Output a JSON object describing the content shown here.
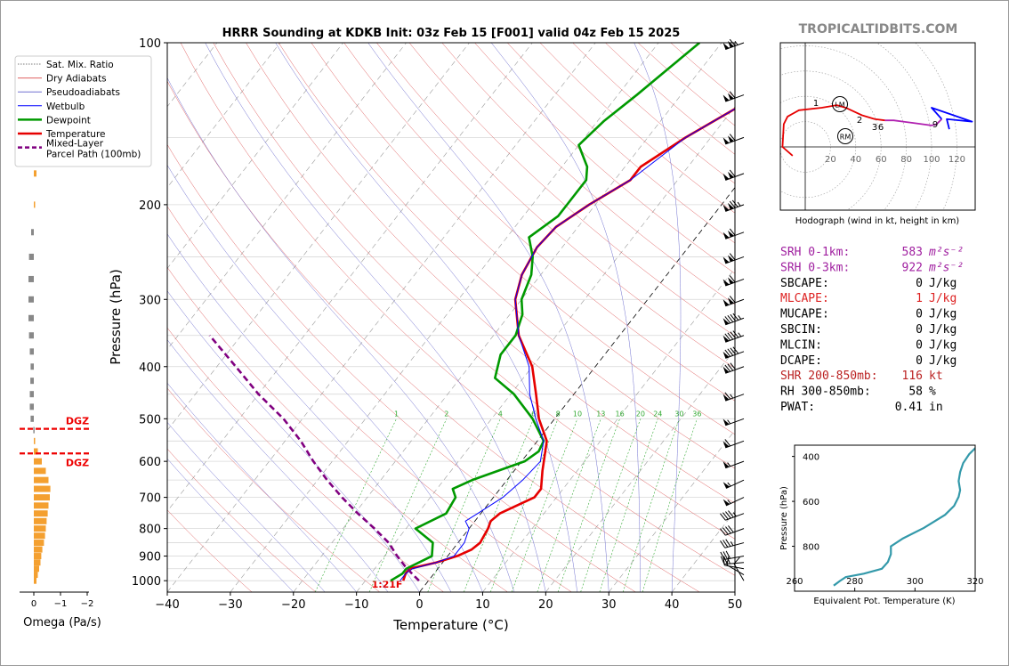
{
  "title": "HRRR Sounding at KDKB Init: 03z Feb 15 [F001] valid 04z Feb 15 2025",
  "watermark": "TROPICALTIDBITS.COM",
  "colors": {
    "temperature": "#e60000",
    "dewpoint": "#009900",
    "wetbulb": "#0000ff",
    "parcel": "#800080",
    "dry_adiabat": "#e06060",
    "moist_adiabat": "#7070d0",
    "mixing_ratio": "#33aa33",
    "isotherm": "#777777",
    "omega_neg": "#f4a030",
    "omega_pos": "#888888",
    "theta_e": "#3399aa",
    "srh": "#a020a0",
    "highlight": "#dd2222"
  },
  "chart_data": [
    {
      "type": "line",
      "name": "skew-t",
      "xlabel": "Temperature (°C)",
      "ylabel": "Pressure (hPa)",
      "xlim": [
        -40,
        50
      ],
      "ylim": [
        1050,
        100
      ],
      "y_scale": "log",
      "x_ticks": [
        -40,
        -30,
        -20,
        -10,
        0,
        10,
        20,
        30,
        40,
        50
      ],
      "y_ticks": [
        100,
        200,
        300,
        400,
        500,
        600,
        700,
        800,
        900,
        1000
      ],
      "mixing_ratio_labels": [
        "1",
        "2",
        "4",
        "6",
        "8",
        "10",
        "13",
        "16",
        "20",
        "24",
        "30",
        "36"
      ],
      "surface_label": "1:21F",
      "legend": {
        "position": "top-left",
        "items": [
          "Sat. Mix. Ratio",
          "Dry Adiabats",
          "Pseudoadiabats",
          "Wetbulb",
          "Dewpoint",
          "Temperature",
          "Mixed-Layer\nParcel Path (100mb)"
        ]
      },
      "series": [
        {
          "name": "Temperature",
          "points": [
            [
              -4.0,
              1000
            ],
            [
              -4.5,
              970
            ],
            [
              -4.5,
              950
            ],
            [
              -1.0,
              925
            ],
            [
              1.5,
              900
            ],
            [
              3.0,
              875
            ],
            [
              3.5,
              850
            ],
            [
              3.0,
              800
            ],
            [
              2.5,
              775
            ],
            [
              3.0,
              750
            ],
            [
              6.5,
              700
            ],
            [
              6.5,
              675
            ],
            [
              4.5,
              625
            ],
            [
              1.5,
              550
            ],
            [
              -2.5,
              500
            ],
            [
              -6.0,
              450
            ],
            [
              -10.0,
              400
            ],
            [
              -16.0,
              350
            ],
            [
              -21.0,
              300
            ],
            [
              -23.0,
              270
            ],
            [
              -24.0,
              240
            ],
            [
              -23.5,
              220
            ],
            [
              -21.0,
              200
            ],
            [
              -17.5,
              180
            ],
            [
              -17.5,
              170
            ],
            [
              -14.0,
              150
            ],
            [
              -9.0,
              130
            ],
            [
              -5.0,
              115
            ],
            [
              -2.0,
              100
            ]
          ]
        },
        {
          "name": "Dewpoint",
          "points": [
            [
              -6.0,
              1000
            ],
            [
              -5.0,
              970
            ],
            [
              -5.0,
              950
            ],
            [
              -2.5,
              900
            ],
            [
              -4.0,
              850
            ],
            [
              -8.5,
              800
            ],
            [
              -5.5,
              750
            ],
            [
              -6.0,
              700
            ],
            [
              -7.5,
              675
            ],
            [
              -5.5,
              650
            ],
            [
              0.5,
              600
            ],
            [
              1.5,
              575
            ],
            [
              1.0,
              550
            ],
            [
              -3.5,
              500
            ],
            [
              -9.5,
              450
            ],
            [
              -14.5,
              420
            ],
            [
              -16.5,
              380
            ],
            [
              -16.5,
              350
            ],
            [
              -18.0,
              320
            ],
            [
              -20.0,
              300
            ],
            [
              -21.5,
              270
            ],
            [
              -23.5,
              250
            ],
            [
              -26.5,
              230
            ],
            [
              -24.5,
              210
            ],
            [
              -24.5,
              200
            ],
            [
              -24.5,
              180
            ],
            [
              -26.0,
              170
            ],
            [
              -30.0,
              155
            ],
            [
              -29.0,
              140
            ],
            [
              -27.0,
              125
            ],
            [
              -25.0,
              110
            ],
            [
              -23.5,
              100
            ]
          ]
        },
        {
          "name": "Wetbulb",
          "points": [
            [
              -4.5,
              1000
            ],
            [
              -4.5,
              970
            ],
            [
              -4.0,
              950
            ],
            [
              -1.0,
              925
            ],
            [
              1.0,
              900
            ],
            [
              1.0,
              850
            ],
            [
              0.0,
              800
            ],
            [
              -1.5,
              775
            ],
            [
              -0.5,
              750
            ],
            [
              1.5,
              700
            ],
            [
              2.5,
              650
            ],
            [
              3.0,
              600
            ],
            [
              1.0,
              550
            ],
            [
              -3.0,
              500
            ],
            [
              -7.0,
              450
            ],
            [
              -10.5,
              400
            ],
            [
              -16.0,
              350
            ],
            [
              -21.0,
              300
            ],
            [
              -23.0,
              270
            ],
            [
              -24.0,
              240
            ],
            [
              -23.5,
              220
            ],
            [
              -21.0,
              200
            ],
            [
              -17.5,
              180
            ],
            [
              -14.0,
              150
            ],
            [
              -9.0,
              130
            ],
            [
              -5.0,
              115
            ],
            [
              -2.0,
              100
            ]
          ]
        },
        {
          "name": "Mixed-Layer Parcel Path (100mb)",
          "points": [
            [
              -1.5,
              1000
            ],
            [
              -3.5,
              970
            ],
            [
              -5.5,
              940
            ],
            [
              -8.0,
              900
            ],
            [
              -11.0,
              850
            ],
            [
              -15.0,
              800
            ],
            [
              -19.5,
              750
            ],
            [
              -24.0,
              700
            ],
            [
              -28.5,
              650
            ],
            [
              -33.0,
              600
            ],
            [
              -37.5,
              550
            ],
            [
              -43.0,
              500
            ],
            [
              -50.0,
              450
            ],
            [
              -57.0,
              400
            ],
            [
              -65.0,
              350
            ]
          ]
        }
      ]
    },
    {
      "type": "bar",
      "name": "omega",
      "xlabel": "Omega (Pa/s)",
      "xlim": [
        0.5,
        -2.5
      ],
      "x_ticks": [
        0,
        -1,
        -2
      ],
      "dgz_label": "DGZ",
      "dgz_pressures": [
        522,
        580
      ],
      "levels": [
        1000,
        975,
        950,
        925,
        900,
        875,
        850,
        825,
        800,
        775,
        750,
        725,
        700,
        675,
        650,
        625,
        600,
        575,
        550,
        525,
        500,
        475,
        450,
        425,
        400,
        375,
        350,
        325,
        300,
        275,
        250,
        225,
        200,
        175,
        150
      ],
      "values": [
        -0.1,
        -0.15,
        -0.2,
        -0.25,
        -0.28,
        -0.32,
        -0.38,
        -0.42,
        -0.45,
        -0.48,
        -0.52,
        -0.55,
        -0.6,
        -0.62,
        -0.55,
        -0.45,
        -0.3,
        -0.15,
        -0.05,
        0.02,
        0.12,
        0.15,
        0.15,
        0.13,
        0.12,
        0.15,
        0.18,
        0.2,
        0.2,
        0.2,
        0.18,
        0.1,
        -0.03,
        -0.1,
        -0.05
      ]
    },
    {
      "type": "line",
      "name": "hodograph",
      "xlabel": "Hodograph (wind in kt, height in km)",
      "x_ticks": [
        20,
        40,
        60,
        80,
        100,
        120
      ],
      "height_labels": [
        "1",
        "2",
        "3",
        "6",
        "9"
      ],
      "markers": [
        "LM",
        "RM"
      ],
      "series": [
        {
          "name": "0-3km",
          "color": "#e60000",
          "points": [
            [
              -10,
              -7
            ],
            [
              -18,
              0
            ],
            [
              -17,
              18
            ],
            [
              -14,
              24
            ],
            [
              -5,
              29
            ],
            [
              13,
              31
            ],
            [
              25,
              33
            ],
            [
              32,
              31
            ],
            [
              45,
              25
            ],
            [
              55,
              22
            ],
            [
              63,
              21
            ]
          ]
        },
        {
          "name": "3-9km",
          "color": "#b020b0",
          "points": [
            [
              63,
              21
            ],
            [
              70,
              21
            ],
            [
              85,
              19
            ],
            [
              100,
              17
            ],
            [
              104,
              18
            ],
            [
              108,
              22
            ]
          ]
        },
        {
          "name": "9km+",
          "color": "#0000ff",
          "points": [
            [
              108,
              22
            ],
            [
              100,
              31
            ],
            [
              132,
              20
            ],
            [
              112,
              22
            ],
            [
              114,
              14
            ]
          ]
        }
      ]
    },
    {
      "type": "line",
      "name": "theta-e",
      "xlabel": "Equivalent Pot. Temperature (K)",
      "ylabel": "Pressure (hPa)",
      "xlim": [
        260,
        320
      ],
      "ylim": [
        1000,
        350
      ],
      "x_ticks": [
        260,
        280,
        300,
        320
      ],
      "y_ticks": [
        400,
        600,
        800
      ],
      "series": [
        {
          "name": "Theta-e",
          "points": [
            [
              273,
              975
            ],
            [
              275,
              955
            ],
            [
              277,
              937
            ],
            [
              283,
              922
            ],
            [
              289,
              900
            ],
            [
              291,
              870
            ],
            [
              292,
              835
            ],
            [
              292,
              800
            ],
            [
              296,
              765
            ],
            [
              303,
              718
            ],
            [
              310,
              660
            ],
            [
              313,
              620
            ],
            [
              314.5,
              580
            ],
            [
              315,
              550
            ],
            [
              314.5,
              510
            ],
            [
              315,
              470
            ],
            [
              316,
              430
            ],
            [
              318,
              390
            ],
            [
              321,
              350
            ]
          ]
        }
      ]
    }
  ],
  "winds": [
    {
      "p": 1000,
      "dir": 330,
      "spd": 10
    },
    {
      "p": 975,
      "dir": 300,
      "spd": 10
    },
    {
      "p": 950,
      "dir": 280,
      "spd": 15
    },
    {
      "p": 925,
      "dir": 265,
      "spd": 25
    },
    {
      "p": 900,
      "dir": 260,
      "spd": 30
    },
    {
      "p": 850,
      "dir": 255,
      "spd": 35
    },
    {
      "p": 800,
      "dir": 250,
      "spd": 40
    },
    {
      "p": 750,
      "dir": 250,
      "spd": 45
    },
    {
      "p": 700,
      "dir": 245,
      "spd": 55
    },
    {
      "p": 650,
      "dir": 245,
      "spd": 55
    },
    {
      "p": 600,
      "dir": 250,
      "spd": 55
    },
    {
      "p": 550,
      "dir": 250,
      "spd": 60
    },
    {
      "p": 500,
      "dir": 250,
      "spd": 55
    },
    {
      "p": 450,
      "dir": 250,
      "spd": 65
    },
    {
      "p": 400,
      "dir": 250,
      "spd": 80
    },
    {
      "p": 375,
      "dir": 250,
      "spd": 90
    },
    {
      "p": 350,
      "dir": 250,
      "spd": 95
    },
    {
      "p": 325,
      "dir": 250,
      "spd": 95
    },
    {
      "p": 300,
      "dir": 250,
      "spd": 110
    },
    {
      "p": 275,
      "dir": 250,
      "spd": 110
    },
    {
      "p": 250,
      "dir": 250,
      "spd": 110
    },
    {
      "p": 225,
      "dir": 250,
      "spd": 110
    },
    {
      "p": 200,
      "dir": 250,
      "spd": 125
    },
    {
      "p": 175,
      "dir": 250,
      "spd": 110
    },
    {
      "p": 150,
      "dir": 250,
      "spd": 110
    },
    {
      "p": 125,
      "dir": 250,
      "spd": 110
    },
    {
      "p": 100,
      "dir": 250,
      "spd": 115
    }
  ],
  "params": [
    {
      "label": "SRH 0-1km:",
      "value": "583",
      "unit": "m²s⁻²",
      "color": "#a020a0"
    },
    {
      "label": "SRH 0-3km:",
      "value": "922",
      "unit": "m²s⁻²",
      "color": "#a020a0"
    },
    {
      "label": "SBCAPE:",
      "value": "0",
      "unit": "J/kg",
      "color": "#000000"
    },
    {
      "label": "MLCAPE:",
      "value": "1",
      "unit": "J/kg",
      "color": "#dd2222"
    },
    {
      "label": "MUCAPE:",
      "value": "0",
      "unit": "J/kg",
      "color": "#000000"
    },
    {
      "label": "SBCIN:",
      "value": "0",
      "unit": "J/kg",
      "color": "#000000"
    },
    {
      "label": "MLCIN:",
      "value": "0",
      "unit": "J/kg",
      "color": "#000000"
    },
    {
      "label": "DCAPE:",
      "value": "0",
      "unit": "J/kg",
      "color": "#000000"
    },
    {
      "label": "SHR 200-850mb:",
      "value": "116",
      "unit": "kt",
      "color": "#bb2222"
    },
    {
      "label": "RH 300-850mb:",
      "value": "58",
      "unit": "%",
      "color": "#000000"
    },
    {
      "label": "PWAT:",
      "value": "0.41",
      "unit": "in",
      "color": "#000000"
    }
  ]
}
